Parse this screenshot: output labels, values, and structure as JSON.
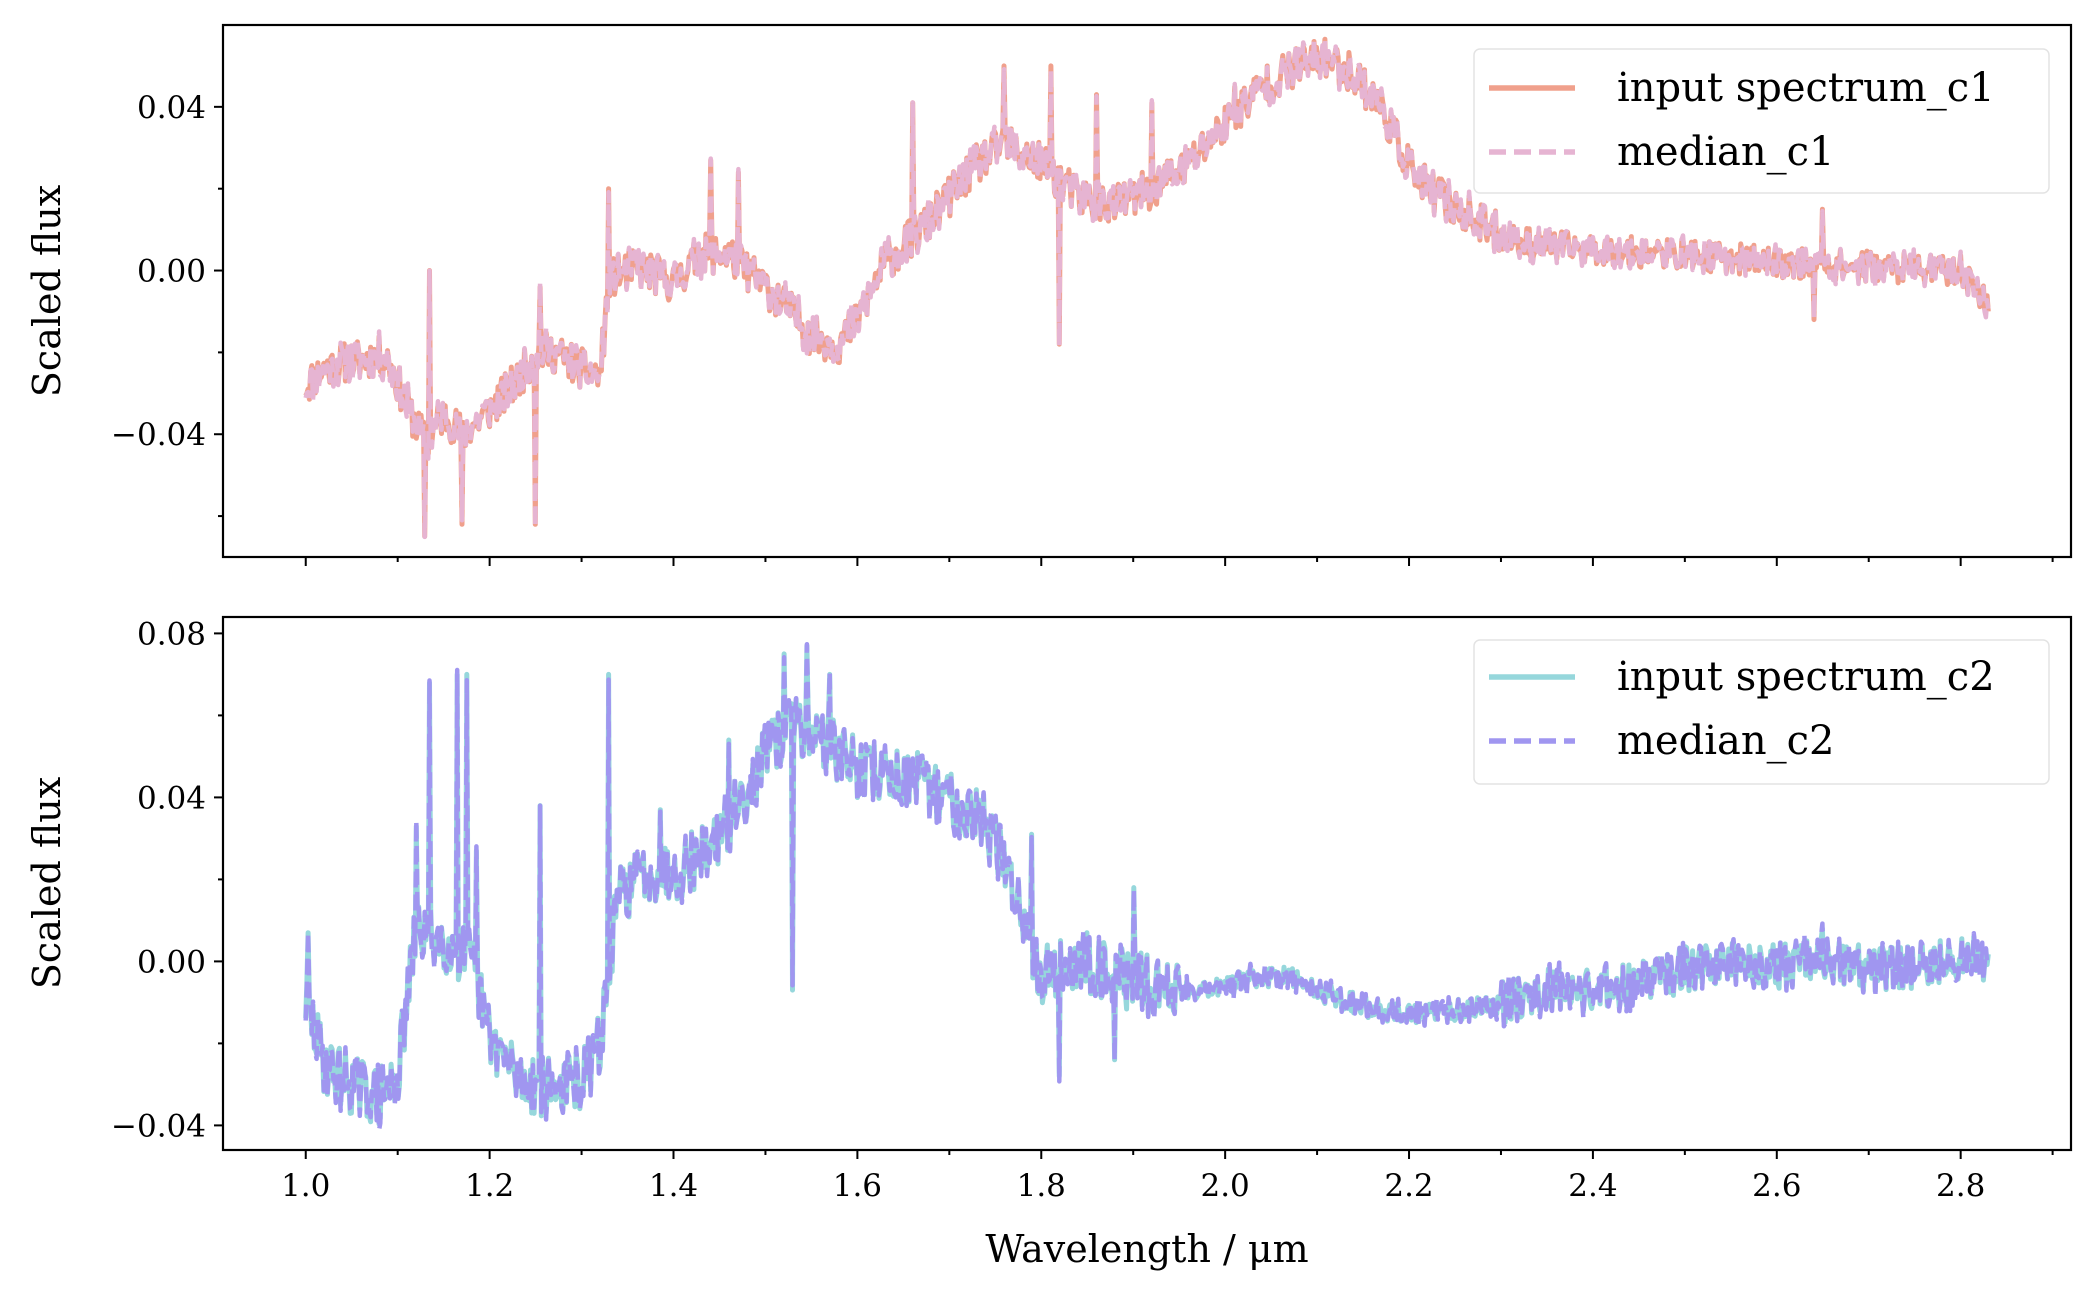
{
  "figure": {
    "x_axis_label": "Wavelength / μm"
  },
  "chart_data": [
    {
      "type": "line",
      "title": "",
      "xlabel": "",
      "ylabel": "Scaled flux",
      "xlim": [
        0.91,
        2.92
      ],
      "ylim": [
        -0.07,
        0.06
      ],
      "xticks": [
        1.0,
        1.2,
        1.4,
        1.6,
        1.8,
        2.0,
        2.2,
        2.4,
        2.6,
        2.8
      ],
      "xtick_labels": [
        "1.0",
        "1.2",
        "1.4",
        "1.6",
        "1.8",
        "2.0",
        "2.2",
        "2.4",
        "2.6",
        "2.8"
      ],
      "show_xtick_labels": false,
      "yticks": [
        -0.04,
        0.0,
        0.04
      ],
      "ytick_labels": [
        "−0.04",
        "0.00",
        "0.04"
      ],
      "legend_position": "top-right",
      "noise_seed": 11,
      "series": [
        {
          "name": "input spectrum_c1",
          "color": "#f0a08c",
          "style": "solid",
          "anchors": [
            [
              1.0,
              -0.028
            ],
            [
              1.02,
              -0.024
            ],
            [
              1.05,
              -0.022
            ],
            [
              1.08,
              -0.021
            ],
            [
              1.09,
              -0.022
            ],
            [
              1.11,
              -0.033
            ],
            [
              1.13,
              -0.042
            ],
            [
              1.15,
              -0.035
            ],
            [
              1.17,
              -0.04
            ],
            [
              1.2,
              -0.034
            ],
            [
              1.23,
              -0.027
            ],
            [
              1.25,
              -0.02
            ],
            [
              1.27,
              -0.02
            ],
            [
              1.3,
              -0.024
            ],
            [
              1.32,
              -0.026
            ],
            [
              1.33,
              -0.002
            ],
            [
              1.36,
              0.001
            ],
            [
              1.4,
              -0.003
            ],
            [
              1.43,
              0.004
            ],
            [
              1.46,
              0.004
            ],
            [
              1.5,
              -0.004
            ],
            [
              1.52,
              -0.008
            ],
            [
              1.55,
              -0.016
            ],
            [
              1.58,
              -0.018
            ],
            [
              1.6,
              -0.012
            ],
            [
              1.63,
              0.002
            ],
            [
              1.67,
              0.01
            ],
            [
              1.7,
              0.018
            ],
            [
              1.73,
              0.026
            ],
            [
              1.76,
              0.031
            ],
            [
              1.8,
              0.026
            ],
            [
              1.84,
              0.018
            ],
            [
              1.88,
              0.016
            ],
            [
              1.92,
              0.02
            ],
            [
              1.96,
              0.026
            ],
            [
              2.0,
              0.036
            ],
            [
              2.04,
              0.045
            ],
            [
              2.08,
              0.05
            ],
            [
              2.11,
              0.052
            ],
            [
              2.14,
              0.048
            ],
            [
              2.17,
              0.04
            ],
            [
              2.19,
              0.03
            ],
            [
              2.21,
              0.022
            ],
            [
              2.24,
              0.017
            ],
            [
              2.28,
              0.011
            ],
            [
              2.32,
              0.007
            ],
            [
              2.4,
              0.005
            ],
            [
              2.5,
              0.004
            ],
            [
              2.6,
              0.002
            ],
            [
              2.7,
              0.001
            ],
            [
              2.8,
              0.0
            ],
            [
              2.83,
              -0.008
            ]
          ],
          "noise_amplitude": 0.005,
          "spikes": [
            [
              1.13,
              -0.065
            ],
            [
              1.135,
              0.0
            ],
            [
              1.17,
              -0.062
            ],
            [
              1.25,
              -0.062
            ],
            [
              1.255,
              -0.004
            ],
            [
              1.33,
              0.02
            ],
            [
              1.44,
              0.027
            ],
            [
              1.47,
              0.024
            ],
            [
              1.66,
              0.041
            ],
            [
              1.76,
              0.05
            ],
            [
              1.81,
              0.05
            ],
            [
              1.82,
              -0.018
            ],
            [
              1.86,
              0.043
            ],
            [
              1.92,
              0.041
            ],
            [
              2.01,
              0.045
            ],
            [
              2.64,
              -0.012
            ],
            [
              2.65,
              0.015
            ]
          ]
        },
        {
          "name": "median_c1",
          "color": "#e6b4d2",
          "style": "dashed",
          "same_as_series": 0,
          "jitter": 0.0012
        }
      ]
    },
    {
      "type": "line",
      "title": "",
      "xlabel": "Wavelength / μm",
      "ylabel": "Scaled flux",
      "xlim": [
        0.91,
        2.92
      ],
      "ylim": [
        -0.046,
        0.084
      ],
      "xticks": [
        1.0,
        1.2,
        1.4,
        1.6,
        1.8,
        2.0,
        2.2,
        2.4,
        2.6,
        2.8
      ],
      "xtick_labels": [
        "1.0",
        "1.2",
        "1.4",
        "1.6",
        "1.8",
        "2.0",
        "2.2",
        "2.4",
        "2.6",
        "2.8"
      ],
      "show_xtick_labels": true,
      "yticks": [
        -0.04,
        0.0,
        0.04,
        0.08
      ],
      "ytick_labels": [
        "−0.04",
        "0.00",
        "0.04",
        "0.08"
      ],
      "legend_position": "top-right",
      "noise_seed": 29,
      "series": [
        {
          "name": "input spectrum_c2",
          "color": "#96d7dc",
          "style": "solid",
          "anchors": [
            [
              1.0,
              -0.01
            ],
            [
              1.02,
              -0.025
            ],
            [
              1.05,
              -0.03
            ],
            [
              1.08,
              -0.033
            ],
            [
              1.1,
              -0.028
            ],
            [
              1.12,
              0.008
            ],
            [
              1.15,
              0.005
            ],
            [
              1.18,
              0.0
            ],
            [
              1.2,
              -0.018
            ],
            [
              1.23,
              -0.028
            ],
            [
              1.26,
              -0.031
            ],
            [
              1.3,
              -0.029
            ],
            [
              1.32,
              -0.02
            ],
            [
              1.34,
              0.016
            ],
            [
              1.37,
              0.022
            ],
            [
              1.4,
              0.022
            ],
            [
              1.43,
              0.026
            ],
            [
              1.46,
              0.034
            ],
            [
              1.5,
              0.05
            ],
            [
              1.53,
              0.058
            ],
            [
              1.56,
              0.055
            ],
            [
              1.6,
              0.047
            ],
            [
              1.65,
              0.045
            ],
            [
              1.7,
              0.04
            ],
            [
              1.74,
              0.034
            ],
            [
              1.77,
              0.018
            ],
            [
              1.8,
              -0.003
            ],
            [
              1.85,
              0.0
            ],
            [
              1.9,
              -0.005
            ],
            [
              1.95,
              -0.007
            ],
            [
              2.0,
              -0.006
            ],
            [
              2.03,
              -0.004
            ],
            [
              2.07,
              -0.004
            ],
            [
              2.1,
              -0.007
            ],
            [
              2.15,
              -0.011
            ],
            [
              2.2,
              -0.013
            ],
            [
              2.25,
              -0.012
            ],
            [
              2.3,
              -0.01
            ],
            [
              2.35,
              -0.006
            ],
            [
              2.4,
              -0.007
            ],
            [
              2.45,
              -0.005
            ],
            [
              2.5,
              -0.002
            ],
            [
              2.55,
              0.0
            ],
            [
              2.6,
              -0.001
            ],
            [
              2.65,
              0.0
            ],
            [
              2.7,
              -0.002
            ],
            [
              2.75,
              -0.001
            ],
            [
              2.8,
              0.0
            ],
            [
              2.83,
              0.001
            ]
          ],
          "noise_amplitude": 0.0075,
          "spikes": [
            [
              1.003,
              0.007
            ],
            [
              1.12,
              0.033
            ],
            [
              1.135,
              0.068
            ],
            [
              1.165,
              0.07
            ],
            [
              1.175,
              0.07
            ],
            [
              1.185,
              0.027
            ],
            [
              1.255,
              0.038
            ],
            [
              1.33,
              0.07
            ],
            [
              1.385,
              0.037
            ],
            [
              1.46,
              0.054
            ],
            [
              1.52,
              0.075
            ],
            [
              1.53,
              -0.007
            ],
            [
              1.545,
              0.077
            ],
            [
              1.57,
              0.07
            ],
            [
              1.79,
              0.031
            ],
            [
              1.82,
              -0.028
            ],
            [
              1.88,
              -0.024
            ],
            [
              1.9,
              0.018
            ],
            [
              2.65,
              0.008
            ]
          ]
        },
        {
          "name": "median_c2",
          "color": "#a096f0",
          "style": "dashed",
          "same_as_series": 0,
          "jitter": 0.0015
        }
      ]
    }
  ]
}
